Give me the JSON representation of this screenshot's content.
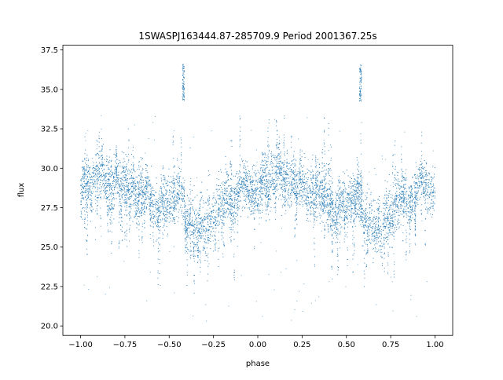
{
  "chart_data": {
    "type": "scatter",
    "title": "1SWASPJ163444.87-285709.9 Period 2001367.25s",
    "xlabel": "phase",
    "ylabel": "flux",
    "xlim": [
      -1.1,
      1.1
    ],
    "ylim": [
      19.4,
      37.8
    ],
    "xticks": [
      -1.0,
      -0.75,
      -0.5,
      -0.25,
      0.0,
      0.25,
      0.5,
      0.75,
      1.0
    ],
    "xtick_labels": [
      "−1.00",
      "−0.75",
      "−0.50",
      "−0.25",
      "0.00",
      "0.25",
      "0.50",
      "0.75",
      "1.00"
    ],
    "yticks": [
      20.0,
      22.5,
      25.0,
      27.5,
      30.0,
      32.5,
      35.0,
      37.5
    ],
    "ytick_labels": [
      "20.0",
      "22.5",
      "25.0",
      "27.5",
      "30.0",
      "32.5",
      "35.0",
      "37.5"
    ],
    "grid": false,
    "marker_color": "#1f77b4",
    "repeat_period_in_phase": 1.0,
    "series": [
      {
        "x": [
          -1.0,
          -0.98,
          -0.96,
          -0.94,
          -0.92,
          -0.9,
          -0.88,
          -0.86,
          -0.84,
          -0.82,
          -0.8,
          -0.78,
          -0.76,
          -0.74,
          -0.72,
          -0.7,
          -0.68,
          -0.66,
          -0.64,
          -0.62,
          -0.6,
          -0.58,
          -0.56,
          -0.54,
          -0.52,
          -0.5,
          -0.48,
          -0.46,
          -0.44,
          -0.42,
          -0.4,
          -0.38,
          -0.36,
          -0.34,
          -0.32,
          -0.3,
          -0.28,
          -0.26,
          -0.24,
          -0.22,
          -0.2,
          -0.18,
          -0.16,
          -0.14,
          -0.12,
          -0.1,
          -0.08,
          -0.06,
          -0.04,
          -0.02
        ],
        "y": [
          28.5,
          28.8,
          29.5,
          28.2,
          29.8,
          29.2,
          30.2,
          28.8,
          29.5,
          28.4,
          29.6,
          28.6,
          29.3,
          29.0,
          28.2,
          28.8,
          27.8,
          28.9,
          28.2,
          29.0,
          27.9,
          27.4,
          27.0,
          28.3,
          27.8,
          27.6,
          28.2,
          28.0,
          28.6,
          28.1,
          26.4,
          27.0,
          26.2,
          26.0,
          26.8,
          25.6,
          27.2,
          26.9,
          27.0,
          28.0,
          27.6,
          28.6,
          28.2,
          27.4,
          28.4,
          28.9,
          29.2,
          29.0,
          28.5,
          28.4
        ],
        "band_half_width": [
          1.4,
          1.5,
          1.6,
          1.4,
          1.5,
          1.4,
          1.6,
          1.5,
          1.4,
          1.5,
          1.4,
          1.6,
          1.4,
          1.5,
          1.6,
          1.4,
          1.6,
          1.5,
          1.4,
          1.5,
          1.6,
          1.6,
          1.5,
          1.4,
          1.6,
          1.5,
          1.4,
          1.5,
          1.4,
          1.5,
          1.6,
          1.7,
          1.8,
          1.7,
          1.6,
          1.8,
          1.7,
          1.6,
          1.6,
          1.7,
          1.6,
          1.5,
          1.6,
          1.5,
          1.4,
          1.5,
          1.4,
          1.4,
          1.5,
          1.4
        ]
      }
    ],
    "spike": {
      "x": -0.42,
      "y_from": 34.2,
      "y_to": 36.6
    },
    "scattered_outliers": {
      "y_low": 20.3,
      "y_high": 33.5
    }
  }
}
